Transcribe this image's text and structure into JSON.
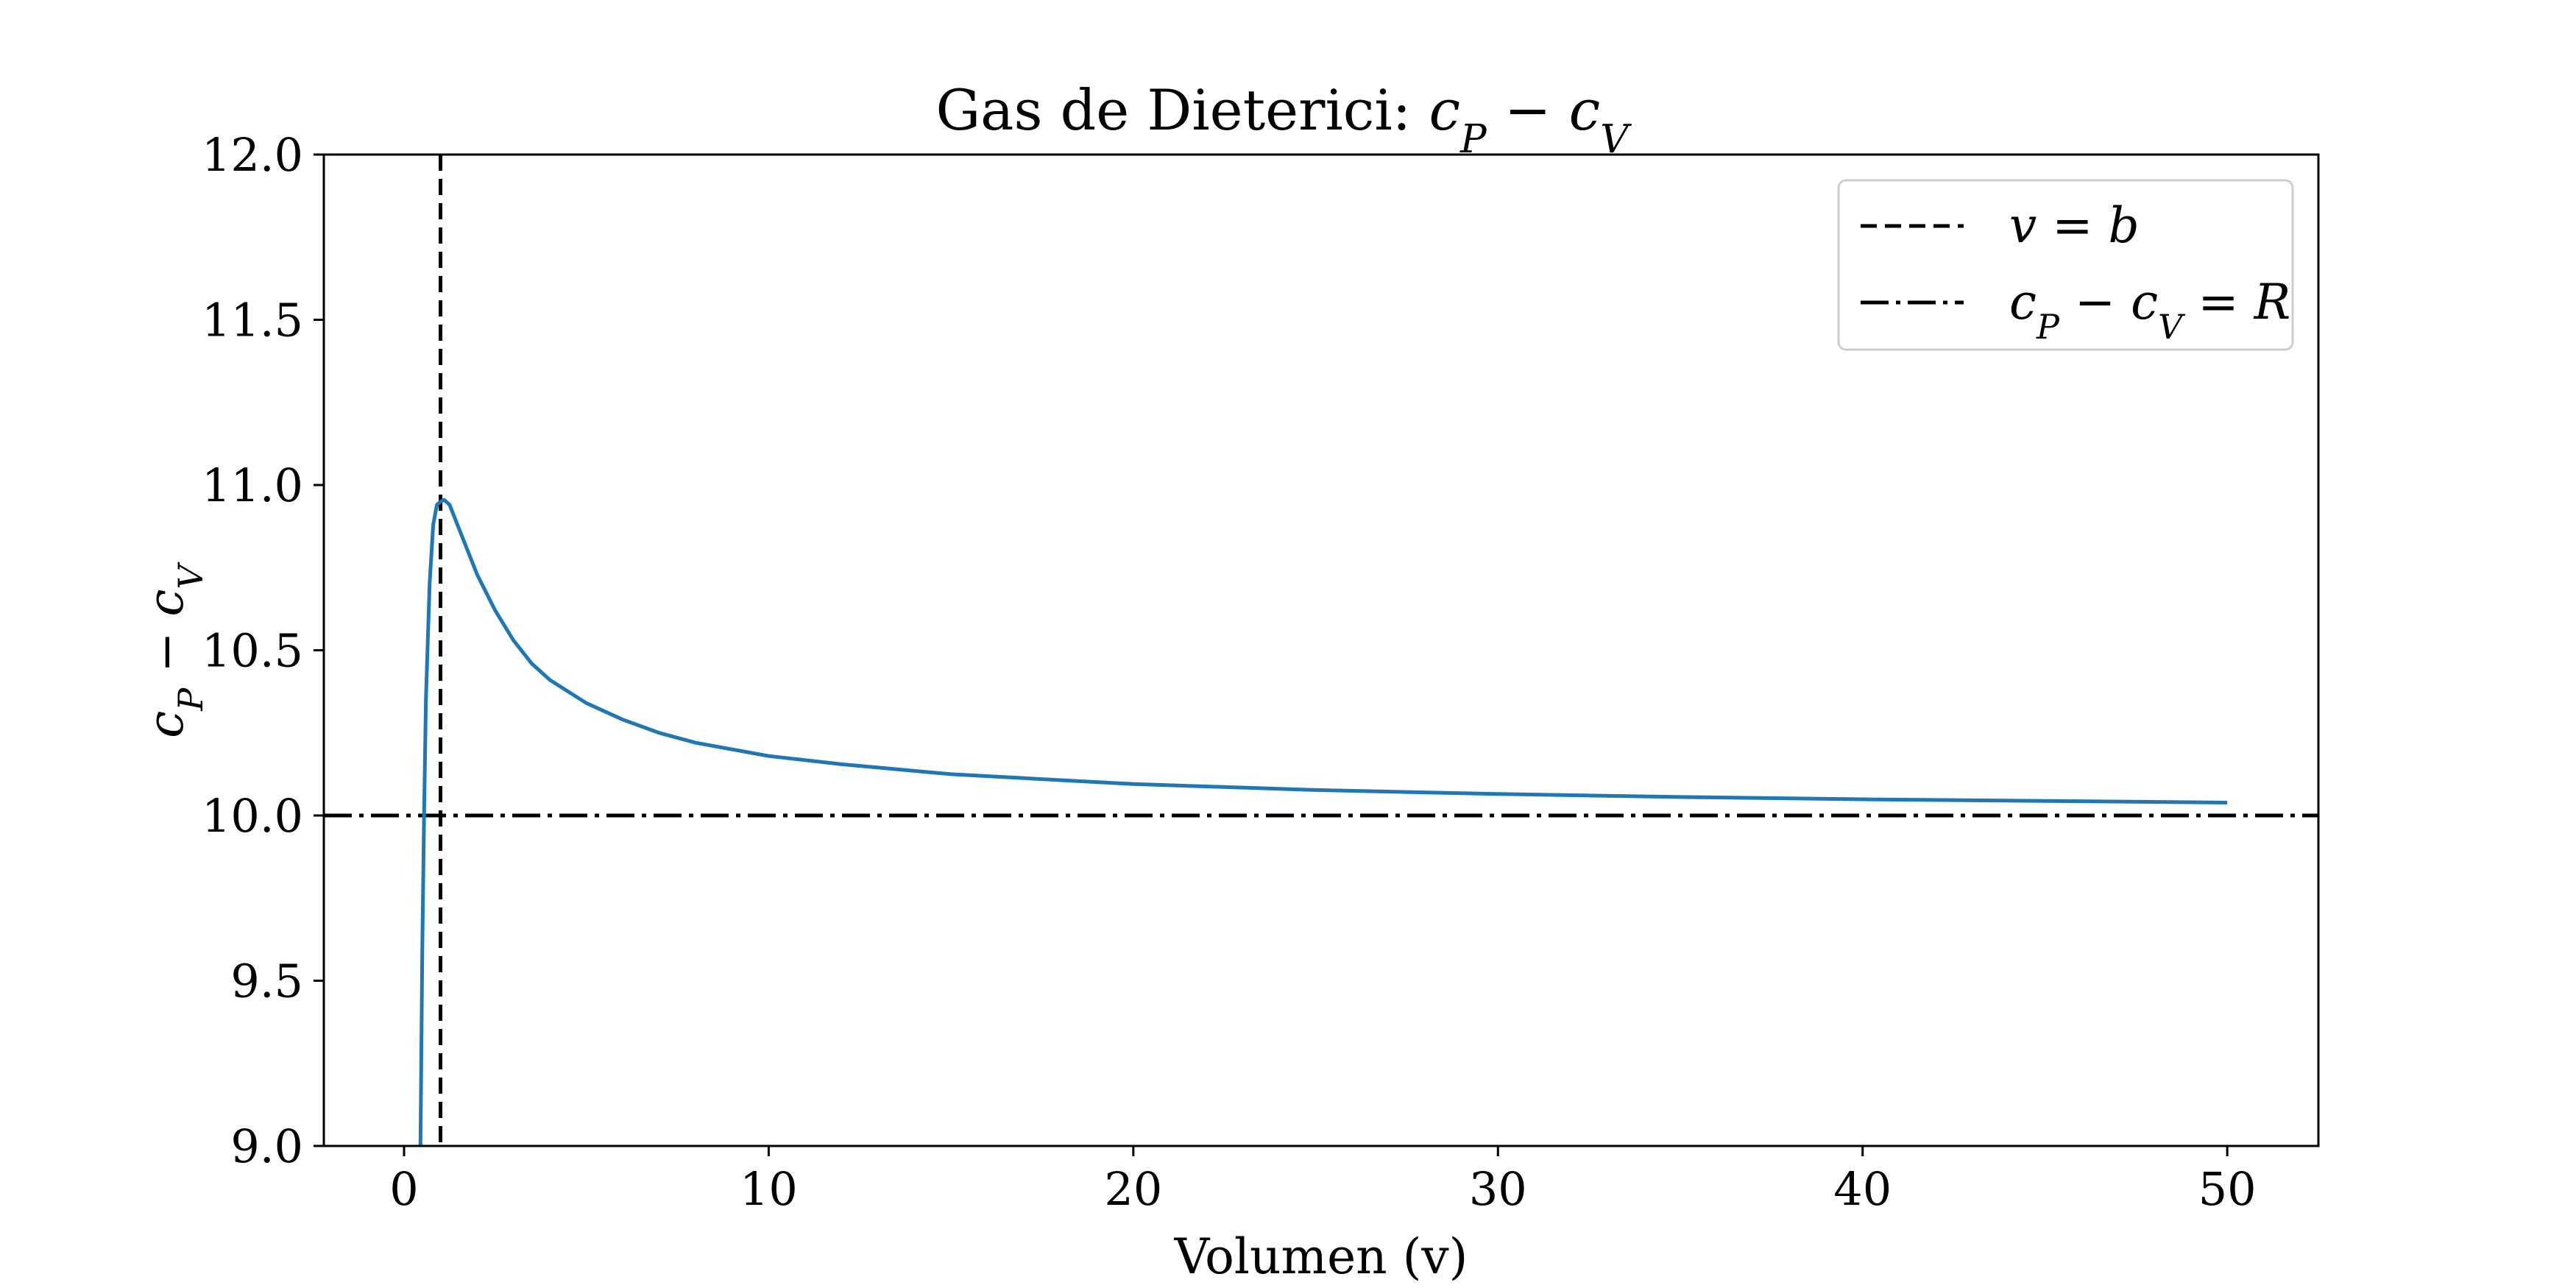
{
  "chart_data": {
    "type": "line",
    "title_prefix": "Gas de Dieterici: ",
    "title_math": "c_P − c_V",
    "xlabel": "Volumen (v)",
    "ylabel": "c_P − c_V",
    "xlim": [
      -2.2,
      52.5
    ],
    "ylim": [
      9.0,
      12.0
    ],
    "x_ticks": [
      0,
      10,
      20,
      30,
      40,
      50
    ],
    "x_tick_labels": [
      "0",
      "10",
      "20",
      "30",
      "40",
      "50"
    ],
    "y_ticks": [
      9.0,
      9.5,
      10.0,
      10.5,
      11.0,
      11.5,
      12.0
    ],
    "y_tick_labels": [
      "9.0",
      "9.5",
      "10.0",
      "10.5",
      "11.0",
      "11.5",
      "12.0"
    ],
    "grid": false,
    "legend_position": "top-right",
    "series": [
      {
        "color": "#1f77b4",
        "style": "solid",
        "points": [
          [
            0.45,
            9.0
          ],
          [
            0.5,
            9.6
          ],
          [
            0.55,
            10.0
          ],
          [
            0.6,
            10.35
          ],
          [
            0.7,
            10.7
          ],
          [
            0.8,
            10.88
          ],
          [
            0.9,
            10.94
          ],
          [
            1.0,
            10.95
          ],
          [
            1.1,
            10.955
          ],
          [
            1.25,
            10.94
          ],
          [
            1.5,
            10.87
          ],
          [
            2.0,
            10.73
          ],
          [
            2.5,
            10.62
          ],
          [
            3.0,
            10.53
          ],
          [
            3.5,
            10.46
          ],
          [
            4.0,
            10.41
          ],
          [
            5.0,
            10.34
          ],
          [
            6.0,
            10.29
          ],
          [
            7.0,
            10.25
          ],
          [
            8.0,
            10.22
          ],
          [
            10.0,
            10.18
          ],
          [
            12.0,
            10.155
          ],
          [
            15.0,
            10.125
          ],
          [
            20.0,
            10.095
          ],
          [
            25.0,
            10.077
          ],
          [
            30.0,
            10.065
          ],
          [
            35.0,
            10.056
          ],
          [
            40.0,
            10.049
          ],
          [
            45.0,
            10.044
          ],
          [
            50.0,
            10.039
          ]
        ]
      }
    ],
    "reference_lines": [
      {
        "orientation": "vertical",
        "value": 1.0,
        "style": "dashed",
        "color": "#000000",
        "legend": "v = b"
      },
      {
        "orientation": "horizontal",
        "value": 10.0,
        "style": "dashdot",
        "color": "#000000",
        "legend": "c_P − c_V = R"
      }
    ]
  }
}
